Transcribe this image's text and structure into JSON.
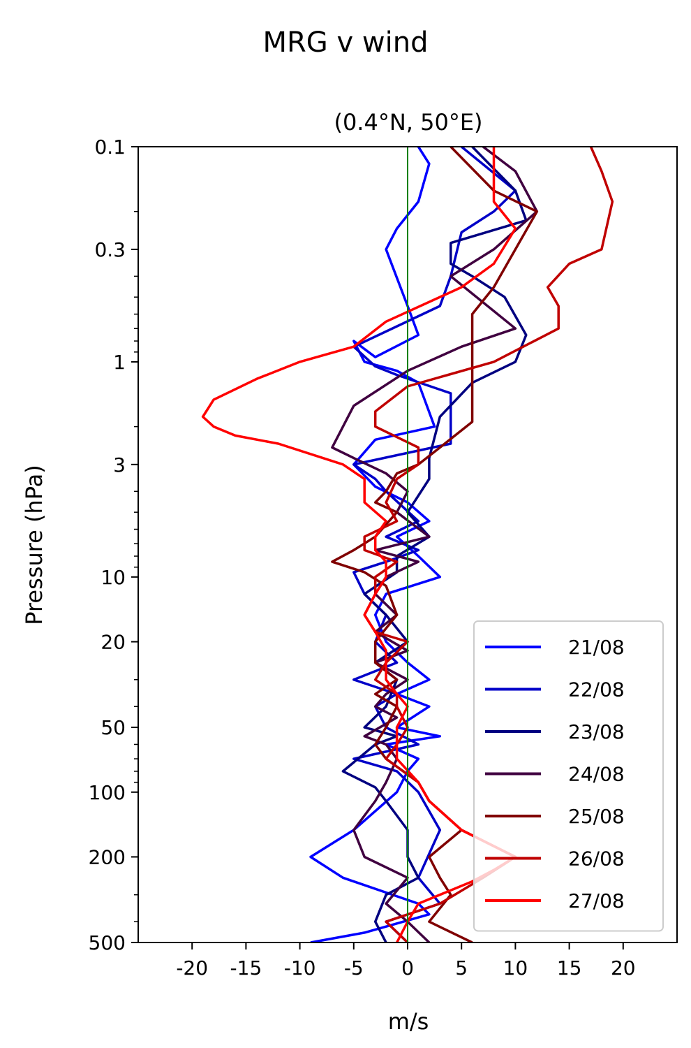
{
  "title": "MRG v wind",
  "chart_data": {
    "type": "line",
    "title": "MRG v wind",
    "subtitle": "(0.4°N, 50°E)",
    "xlabel": "m/s",
    "ylabel": "Pressure (hPa)",
    "xlim": [
      -25,
      25
    ],
    "ylim": [
      500,
      0.1
    ],
    "yscale": "log",
    "y_inverted": true,
    "grid": false,
    "legend_position": "lower-right",
    "xticks": [
      -20,
      -15,
      -10,
      -5,
      0,
      5,
      10,
      15,
      20
    ],
    "xtick_labels": [
      "-20",
      "-15",
      "-10",
      "-5",
      "0",
      "5",
      "10",
      "15",
      "20"
    ],
    "yticks": [
      0.1,
      0.3,
      1,
      3,
      10,
      20,
      50,
      100,
      200,
      500
    ],
    "ytick_labels": [
      "0.1",
      "0.3",
      "1",
      "3",
      "10",
      "20",
      "50",
      "100",
      "200",
      "500"
    ],
    "reference_line": {
      "x": 0,
      "color": "#008000"
    },
    "series": [
      {
        "name": "21/08",
        "color": "#0000ff",
        "points": [
          [
            1,
            0.1
          ],
          [
            2,
            0.12
          ],
          [
            1,
            0.18
          ],
          [
            -1,
            0.24
          ],
          [
            -2,
            0.3
          ],
          [
            0,
            0.55
          ],
          [
            1,
            0.75
          ],
          [
            -3,
            0.95
          ],
          [
            -5,
            0.8
          ],
          [
            -4,
            1.0
          ],
          [
            -1,
            1.1
          ],
          [
            1,
            1.25
          ],
          [
            2.5,
            2.0
          ],
          [
            -3,
            2.3
          ],
          [
            -5,
            3.0
          ],
          [
            -3,
            3.8
          ],
          [
            0,
            4.5
          ],
          [
            2,
            5.5
          ],
          [
            -1,
            6.5
          ],
          [
            1,
            8.0
          ],
          [
            3,
            10
          ],
          [
            -2,
            12
          ],
          [
            -3,
            15
          ],
          [
            -2,
            20
          ],
          [
            0,
            25
          ],
          [
            2,
            30
          ],
          [
            -1,
            35
          ],
          [
            2,
            40
          ],
          [
            -1,
            50
          ],
          [
            3,
            55
          ],
          [
            -2,
            60
          ],
          [
            1,
            70
          ],
          [
            0,
            80
          ],
          [
            -1,
            100
          ],
          [
            -5,
            150
          ],
          [
            -9,
            200
          ],
          [
            -6,
            250
          ],
          [
            1,
            330
          ],
          [
            2,
            370
          ],
          [
            -4,
            450
          ],
          [
            -9,
            500
          ]
        ]
      },
      {
        "name": "22/08",
        "color": "#0000c8",
        "points": [
          [
            5,
            0.1
          ],
          [
            10,
            0.16
          ],
          [
            8,
            0.2
          ],
          [
            5,
            0.25
          ],
          [
            4,
            0.4
          ],
          [
            3,
            0.55
          ],
          [
            -5,
            0.85
          ],
          [
            -3,
            1.05
          ],
          [
            -1,
            1.15
          ],
          [
            4,
            1.4
          ],
          [
            4,
            2.4
          ],
          [
            -5,
            3.0
          ],
          [
            -3,
            3.5
          ],
          [
            -2,
            4.0
          ],
          [
            1,
            5.5
          ],
          [
            -2,
            6.5
          ],
          [
            1,
            7.5
          ],
          [
            -2,
            8.5
          ],
          [
            -5,
            9.5
          ],
          [
            -4,
            12
          ],
          [
            -2,
            15
          ],
          [
            -3,
            20
          ],
          [
            -1,
            25
          ],
          [
            -5,
            30
          ],
          [
            -1,
            35
          ],
          [
            -3,
            40
          ],
          [
            -2,
            50
          ],
          [
            1,
            60
          ],
          [
            -5,
            70
          ],
          [
            -1,
            80
          ],
          [
            1,
            100
          ],
          [
            3,
            150
          ],
          [
            1,
            250
          ],
          [
            3,
            330
          ],
          [
            -2,
            400
          ],
          [
            0,
            500
          ]
        ]
      },
      {
        "name": "23/08",
        "color": "#000080",
        "points": [
          [
            6,
            0.1
          ],
          [
            10,
            0.16
          ],
          [
            11,
            0.22
          ],
          [
            4,
            0.28
          ],
          [
            4,
            0.35
          ],
          [
            6,
            0.4
          ],
          [
            9,
            0.5
          ],
          [
            11,
            0.75
          ],
          [
            10,
            1.0
          ],
          [
            6,
            1.25
          ],
          [
            3,
            1.8
          ],
          [
            2,
            2.8
          ],
          [
            2,
            3.5
          ],
          [
            0,
            5.0
          ],
          [
            2,
            6.5
          ],
          [
            -1,
            8.0
          ],
          [
            -1,
            9.5
          ],
          [
            -4,
            12
          ],
          [
            -2,
            15
          ],
          [
            0,
            20
          ],
          [
            -3,
            25
          ],
          [
            -1,
            30
          ],
          [
            -2,
            40
          ],
          [
            -4,
            50
          ],
          [
            -1,
            55
          ],
          [
            -3,
            60
          ],
          [
            -6,
            80
          ],
          [
            -3,
            95
          ],
          [
            -2,
            110
          ],
          [
            0,
            150
          ],
          [
            0,
            200
          ],
          [
            1,
            250
          ],
          [
            -2,
            300
          ],
          [
            -3,
            400
          ],
          [
            -2,
            500
          ]
        ]
      },
      {
        "name": "24/08",
        "color": "#400040",
        "points": [
          [
            7,
            0.1
          ],
          [
            10,
            0.13
          ],
          [
            12,
            0.2
          ],
          [
            8,
            0.3
          ],
          [
            4,
            0.4
          ],
          [
            10,
            0.7
          ],
          [
            5,
            0.85
          ],
          [
            0,
            1.1
          ],
          [
            -5,
            1.6
          ],
          [
            -6,
            2.0
          ],
          [
            -7,
            2.5
          ],
          [
            -5,
            2.8
          ],
          [
            -2,
            3.3
          ],
          [
            0,
            4.0
          ],
          [
            -1,
            5.0
          ],
          [
            2,
            6.5
          ],
          [
            -3,
            7.5
          ],
          [
            1,
            8.5
          ],
          [
            -2,
            10
          ],
          [
            -3,
            12
          ],
          [
            -1,
            15
          ],
          [
            -3,
            18
          ],
          [
            0,
            22
          ],
          [
            -3,
            25
          ],
          [
            0,
            30
          ],
          [
            -2,
            35
          ],
          [
            -3,
            40
          ],
          [
            -1,
            45
          ],
          [
            -4,
            55
          ],
          [
            -2,
            60
          ],
          [
            -1,
            70
          ],
          [
            -2,
            90
          ],
          [
            -3,
            110
          ],
          [
            -5,
            150
          ],
          [
            -4,
            200
          ],
          [
            0,
            250
          ],
          [
            -2,
            330
          ],
          [
            0,
            400
          ],
          [
            2,
            500
          ]
        ]
      },
      {
        "name": "25/08",
        "color": "#800000",
        "points": [
          [
            4,
            0.1
          ],
          [
            8,
            0.16
          ],
          [
            12,
            0.2
          ],
          [
            10,
            0.3
          ],
          [
            8,
            0.45
          ],
          [
            6,
            0.6
          ],
          [
            6,
            0.8
          ],
          [
            6,
            1.0
          ],
          [
            6,
            1.2
          ],
          [
            6,
            1.5
          ],
          [
            6,
            1.9
          ],
          [
            3,
            2.5
          ],
          [
            1,
            3.0
          ],
          [
            -1,
            3.3
          ],
          [
            -2,
            4.0
          ],
          [
            -3,
            4.5
          ],
          [
            -1,
            5.0
          ],
          [
            -3,
            6.5
          ],
          [
            -5,
            7.5
          ],
          [
            -7,
            8.5
          ],
          [
            -4,
            9.5
          ],
          [
            -2,
            11
          ],
          [
            -1,
            15
          ],
          [
            -3,
            20
          ],
          [
            -3,
            25
          ],
          [
            -1,
            30
          ],
          [
            -3,
            35
          ],
          [
            -1,
            40
          ],
          [
            -2,
            50
          ],
          [
            -3,
            60
          ],
          [
            -2,
            70
          ],
          [
            1,
            90
          ],
          [
            2,
            110
          ],
          [
            5,
            150
          ],
          [
            2,
            200
          ],
          [
            3,
            250
          ],
          [
            4,
            300
          ],
          [
            2,
            400
          ],
          [
            6,
            500
          ]
        ]
      },
      {
        "name": "26/08",
        "color": "#c00000",
        "points": [
          [
            17,
            0.1
          ],
          [
            18,
            0.13
          ],
          [
            19,
            0.18
          ],
          [
            18,
            0.3
          ],
          [
            15,
            0.35
          ],
          [
            13,
            0.45
          ],
          [
            14,
            0.55
          ],
          [
            14,
            0.7
          ],
          [
            8,
            1.0
          ],
          [
            0,
            1.3
          ],
          [
            -3,
            1.7
          ],
          [
            -3,
            2.0
          ],
          [
            1,
            2.5
          ],
          [
            1,
            3.0
          ],
          [
            -1,
            3.5
          ],
          [
            -2,
            4.5
          ],
          [
            -1,
            5.5
          ],
          [
            -4,
            6.5
          ],
          [
            -4,
            7.5
          ],
          [
            -1,
            8.5
          ],
          [
            -3,
            10
          ],
          [
            -3,
            12
          ],
          [
            -4,
            15
          ],
          [
            -3,
            18
          ],
          [
            0,
            20
          ],
          [
            -2,
            25
          ],
          [
            -3,
            30
          ],
          [
            -1,
            35
          ],
          [
            -1,
            40
          ],
          [
            0,
            50
          ],
          [
            -1,
            60
          ],
          [
            -2,
            70
          ],
          [
            1,
            90
          ],
          [
            2,
            110
          ],
          [
            5,
            150
          ],
          [
            10,
            200
          ],
          [
            7,
            250
          ],
          [
            3,
            330
          ],
          [
            -2,
            400
          ],
          [
            0,
            500
          ]
        ]
      },
      {
        "name": "27/08",
        "color": "#ff0000",
        "points": [
          [
            8,
            0.1
          ],
          [
            8,
            0.13
          ],
          [
            8,
            0.18
          ],
          [
            10,
            0.24
          ],
          [
            8,
            0.35
          ],
          [
            5,
            0.45
          ],
          [
            -2,
            0.65
          ],
          [
            -5,
            0.85
          ],
          [
            -10,
            1.0
          ],
          [
            -14,
            1.2
          ],
          [
            -18,
            1.5
          ],
          [
            -19,
            1.8
          ],
          [
            -18,
            2.0
          ],
          [
            -16,
            2.2
          ],
          [
            -12,
            2.4
          ],
          [
            -6,
            3.0
          ],
          [
            -4,
            3.5
          ],
          [
            -4,
            4.5
          ],
          [
            -2,
            5.5
          ],
          [
            -3,
            6.5
          ],
          [
            -3,
            7.5
          ],
          [
            -2,
            8.5
          ],
          [
            -2,
            10
          ],
          [
            -3,
            12
          ],
          [
            -4,
            15
          ],
          [
            -3,
            18
          ],
          [
            -2,
            22
          ],
          [
            -2,
            25
          ],
          [
            -2,
            30
          ],
          [
            -1,
            35
          ],
          [
            0,
            40
          ],
          [
            -1,
            50
          ],
          [
            -1,
            60
          ],
          [
            -1,
            70
          ],
          [
            1,
            90
          ],
          [
            2,
            110
          ],
          [
            5,
            150
          ],
          [
            10,
            200
          ],
          [
            8,
            230
          ],
          [
            6,
            260
          ],
          [
            1,
            330
          ],
          [
            0,
            400
          ],
          [
            -1,
            500
          ]
        ]
      }
    ]
  }
}
